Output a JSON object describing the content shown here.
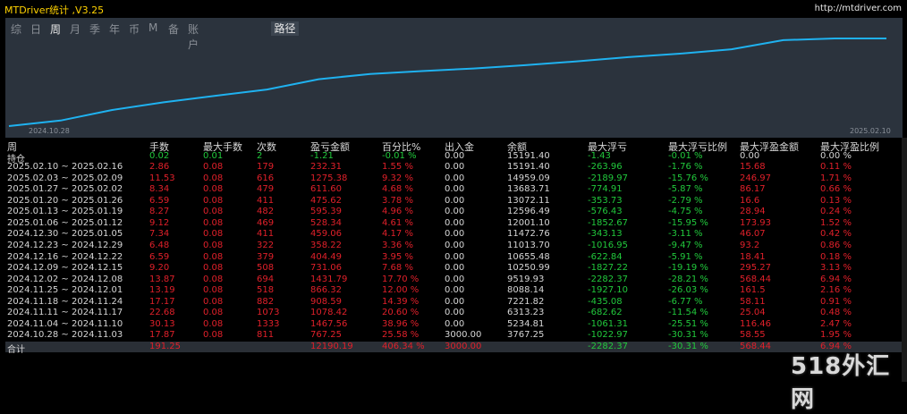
{
  "header": {
    "title": "MTDriver统计 ,V3.25",
    "url": "http://mtdriver.com"
  },
  "tabs": [
    "综",
    "日",
    "周",
    "月",
    "季",
    "年",
    "币",
    "M",
    "备",
    "账户"
  ],
  "active_tab": "周",
  "path_button": "路径",
  "chart": {
    "x_start_label": "2024.10.28",
    "x_end_label": "2025.02.10",
    "line_color": "#1fb2f0",
    "balance": [
      3000.0,
      3767.25,
      5234.81,
      6313.23,
      7221.82,
      8088.14,
      9519.93,
      10250.99,
      10655.48,
      11013.7,
      11472.76,
      12001.1,
      12596.49,
      13072.11,
      13683.71,
      14959.09,
      15191.4,
      15191.4
    ]
  },
  "table": {
    "columns": [
      "周",
      "手数",
      "最大手数",
      "次数",
      "盈亏金额",
      "百分比%",
      "出入金",
      "余额",
      "最大浮亏",
      "最大浮亏比例",
      "最大浮盈金额",
      "最大浮盈比例"
    ],
    "position_row": [
      "持仓",
      "0.02",
      "0.01",
      "2",
      "-1.21",
      "-0.01 %",
      "0.00",
      "15191.40",
      "-1.43",
      "-0.01 %",
      "0.00",
      "0.00 %"
    ],
    "rows": [
      [
        "2025.02.10 ~ 2025.02.16",
        "2.86",
        "0.08",
        "179",
        "232.31",
        "1.55 %",
        "0.00",
        "15191.40",
        "-263.96",
        "-1.76 %",
        "15.68",
        "0.11 %"
      ],
      [
        "2025.02.03 ~ 2025.02.09",
        "11.53",
        "0.08",
        "616",
        "1275.38",
        "9.32 %",
        "0.00",
        "14959.09",
        "-2189.97",
        "-15.76 %",
        "246.97",
        "1.71 %"
      ],
      [
        "2025.01.27 ~ 2025.02.02",
        "8.34",
        "0.08",
        "479",
        "611.60",
        "4.68 %",
        "0.00",
        "13683.71",
        "-774.91",
        "-5.87 %",
        "86.17",
        "0.66 %"
      ],
      [
        "2025.01.20 ~ 2025.01.26",
        "6.59",
        "0.08",
        "411",
        "475.62",
        "3.78 %",
        "0.00",
        "13072.11",
        "-353.73",
        "-2.79 %",
        "16.6",
        "0.13 %"
      ],
      [
        "2025.01.13 ~ 2025.01.19",
        "8.27",
        "0.08",
        "482",
        "595.39",
        "4.96 %",
        "0.00",
        "12596.49",
        "-576.43",
        "-4.75 %",
        "28.94",
        "0.24 %"
      ],
      [
        "2025.01.06 ~ 2025.01.12",
        "9.12",
        "0.08",
        "469",
        "528.34",
        "4.61 %",
        "0.00",
        "12001.10",
        "-1852.67",
        "-15.95 %",
        "173.93",
        "1.52 %"
      ],
      [
        "2024.12.30 ~ 2025.01.05",
        "7.34",
        "0.08",
        "411",
        "459.06",
        "4.17 %",
        "0.00",
        "11472.76",
        "-343.13",
        "-3.11 %",
        "46.07",
        "0.42 %"
      ],
      [
        "2024.12.23 ~ 2024.12.29",
        "6.48",
        "0.08",
        "322",
        "358.22",
        "3.36 %",
        "0.00",
        "11013.70",
        "-1016.95",
        "-9.47 %",
        "93.2",
        "0.86 %"
      ],
      [
        "2024.12.16 ~ 2024.12.22",
        "6.59",
        "0.08",
        "379",
        "404.49",
        "3.95 %",
        "0.00",
        "10655.48",
        "-622.84",
        "-5.91 %",
        "18.41",
        "0.18 %"
      ],
      [
        "2024.12.09 ~ 2024.12.15",
        "9.20",
        "0.08",
        "508",
        "731.06",
        "7.68 %",
        "0.00",
        "10250.99",
        "-1827.22",
        "-19.19 %",
        "295.27",
        "3.13 %"
      ],
      [
        "2024.12.02 ~ 2024.12.08",
        "13.87",
        "0.08",
        "694",
        "1431.79",
        "17.70 %",
        "0.00",
        "9519.93",
        "-2282.37",
        "-28.21 %",
        "568.44",
        "6.94 %"
      ],
      [
        "2024.11.25 ~ 2024.12.01",
        "13.19",
        "0.08",
        "518",
        "866.32",
        "12.00 %",
        "0.00",
        "8088.14",
        "-1927.10",
        "-26.03 %",
        "161.5",
        "2.16 %"
      ],
      [
        "2024.11.18 ~ 2024.11.24",
        "17.17",
        "0.08",
        "882",
        "908.59",
        "14.39 %",
        "0.00",
        "7221.82",
        "-435.08",
        "-6.77 %",
        "58.11",
        "0.91 %"
      ],
      [
        "2024.11.11 ~ 2024.11.17",
        "22.68",
        "0.08",
        "1073",
        "1078.42",
        "20.60 %",
        "0.00",
        "6313.23",
        "-682.62",
        "-11.54 %",
        "25.04",
        "0.48 %"
      ],
      [
        "2024.11.04 ~ 2024.11.10",
        "30.13",
        "0.08",
        "1333",
        "1467.56",
        "38.96 %",
        "0.00",
        "5234.81",
        "-1061.31",
        "-25.51 %",
        "116.46",
        "2.47 %"
      ],
      [
        "2024.10.28 ~ 2024.11.03",
        "17.87",
        "0.08",
        "811",
        "767.25",
        "25.58 %",
        "3000.00",
        "3767.25",
        "-1022.97",
        "-30.31 %",
        "58.55",
        "1.95 %"
      ]
    ],
    "total_row": [
      "合计",
      "191.25",
      "",
      "",
      "12190.19",
      "406.34 %",
      "3000.00",
      "",
      "-2282.37",
      "-30.31 %",
      "568.44",
      "6.94 %"
    ]
  },
  "colors": {
    "loss": "#e0202a",
    "gain": "#21c93c",
    "title": "#ffd200",
    "panel": "#2b333d"
  },
  "watermark": "518外汇网"
}
